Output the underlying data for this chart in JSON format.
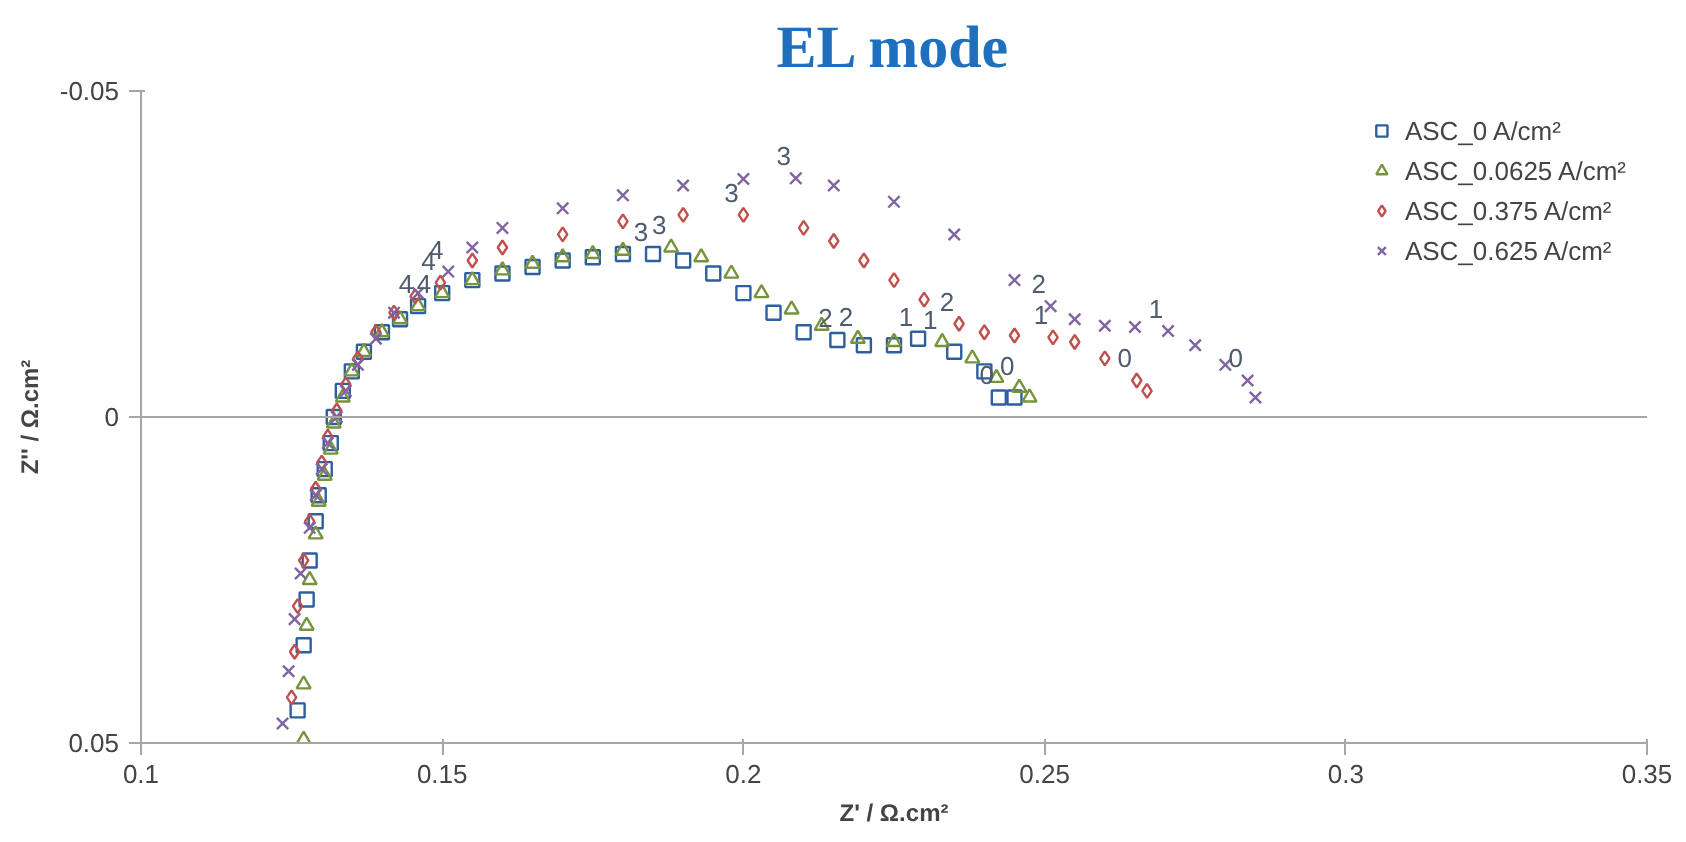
{
  "chart_data": {
    "type": "scatter",
    "title": "EL mode",
    "xlabel": "Z' / Ω.cm²",
    "ylabel": "Z'' / Ω.cm²",
    "xlim": [
      0.1,
      0.35
    ],
    "xticks": [
      0.1,
      0.15,
      0.2,
      0.25,
      0.3,
      0.35
    ],
    "ylim": [
      0.05,
      -0.05
    ],
    "yticks": [
      -0.05,
      0,
      0.05
    ],
    "grid": false,
    "legend": "top right",
    "ref_lines": [
      {
        "axis": "y",
        "value": 0,
        "color": "#a6a6a6"
      }
    ],
    "series": [
      {
        "name": "ASC_0 A/cm²",
        "color": "#2e5f9e",
        "marker": "square",
        "x": [
          0.126,
          0.127,
          0.1275,
          0.128,
          0.129,
          0.1295,
          0.1305,
          0.1315,
          0.132,
          0.1335,
          0.135,
          0.137,
          0.14,
          0.143,
          0.146,
          0.15,
          0.155,
          0.16,
          0.165,
          0.17,
          0.175,
          0.18,
          0.185,
          0.19,
          0.195,
          0.2,
          0.205,
          0.21,
          0.2156,
          0.22,
          0.225,
          0.229,
          0.235,
          0.24,
          0.2424,
          0.245
        ],
        "values": [
          0.045,
          0.035,
          0.028,
          0.022,
          0.016,
          0.012,
          0.008,
          0.004,
          0.0,
          -0.004,
          -0.007,
          -0.01,
          -0.013,
          -0.015,
          -0.017,
          -0.019,
          -0.021,
          -0.022,
          -0.023,
          -0.024,
          -0.0245,
          -0.025,
          -0.025,
          -0.024,
          -0.022,
          -0.019,
          -0.016,
          -0.013,
          -0.0118,
          -0.011,
          -0.011,
          -0.012,
          -0.01,
          -0.007,
          -0.003,
          -0.003
        ]
      },
      {
        "name": "ASC_0.0625 A/cm²",
        "color": "#77933c",
        "marker": "triangle",
        "x": [
          0.127,
          0.127,
          0.1275,
          0.128,
          0.129,
          0.1295,
          0.1305,
          0.1315,
          0.132,
          0.1335,
          0.135,
          0.137,
          0.14,
          0.143,
          0.146,
          0.15,
          0.155,
          0.16,
          0.165,
          0.17,
          0.175,
          0.18,
          0.188,
          0.193,
          0.198,
          0.203,
          0.208,
          0.213,
          0.219,
          0.225,
          0.233,
          0.238,
          0.242,
          0.2458,
          0.2475
        ],
        "values": [
          0.0495,
          0.041,
          0.032,
          0.025,
          0.018,
          0.013,
          0.009,
          0.005,
          0.001,
          -0.003,
          -0.007,
          -0.01,
          -0.013,
          -0.015,
          -0.017,
          -0.019,
          -0.021,
          -0.0225,
          -0.0235,
          -0.0245,
          -0.025,
          -0.0255,
          -0.026,
          -0.0245,
          -0.022,
          -0.019,
          -0.0165,
          -0.014,
          -0.012,
          -0.0115,
          -0.0115,
          -0.009,
          -0.006,
          -0.0045,
          -0.003
        ]
      },
      {
        "name": "ASC_0.375 A/cm²",
        "color": "#c0504d",
        "marker": "diamond",
        "x": [
          0.125,
          0.1255,
          0.126,
          0.127,
          0.128,
          0.129,
          0.13,
          0.131,
          0.1325,
          0.134,
          0.136,
          0.139,
          0.142,
          0.1455,
          0.1497,
          0.155,
          0.16,
          0.17,
          0.18,
          0.19,
          0.2,
          0.21,
          0.215,
          0.22,
          0.225,
          0.23,
          0.2358,
          0.24,
          0.245,
          0.2514,
          0.255,
          0.26,
          0.2653,
          0.267
        ],
        "values": [
          0.043,
          0.036,
          0.029,
          0.022,
          0.016,
          0.011,
          0.007,
          0.003,
          -0.001,
          -0.005,
          -0.009,
          -0.013,
          -0.016,
          -0.0185,
          -0.0206,
          -0.024,
          -0.026,
          -0.028,
          -0.03,
          -0.031,
          -0.031,
          -0.029,
          -0.027,
          -0.024,
          -0.021,
          -0.018,
          -0.0143,
          -0.013,
          -0.0125,
          -0.0122,
          -0.0115,
          -0.009,
          -0.0056,
          -0.004
        ]
      },
      {
        "name": "ASC_0.625 A/cm²",
        "color": "#8064a2",
        "marker": "x",
        "x": [
          0.1235,
          0.1245,
          0.1255,
          0.1265,
          0.128,
          0.129,
          0.13,
          0.131,
          0.1325,
          0.134,
          0.136,
          0.139,
          0.142,
          0.146,
          0.151,
          0.155,
          0.16,
          0.17,
          0.18,
          0.19,
          0.2,
          0.2087,
          0.215,
          0.225,
          0.235,
          0.245,
          0.251,
          0.255,
          0.26,
          0.265,
          0.2705,
          0.275,
          0.28,
          0.2837,
          0.285
        ],
        "values": [
          0.047,
          0.039,
          0.031,
          0.024,
          0.017,
          0.012,
          0.008,
          0.004,
          0.0,
          -0.004,
          -0.008,
          -0.012,
          -0.016,
          -0.019,
          -0.0223,
          -0.026,
          -0.029,
          -0.032,
          -0.034,
          -0.0355,
          -0.0365,
          -0.0366,
          -0.0355,
          -0.033,
          -0.028,
          -0.021,
          -0.017,
          -0.015,
          -0.014,
          -0.0138,
          -0.0132,
          -0.011,
          -0.008,
          -0.0056,
          -0.003
        ]
      }
    ],
    "annotations": [
      {
        "text": "4",
        "x": 0.146,
        "y": -0.017
      },
      {
        "text": "3",
        "x": 0.185,
        "y": -0.025
      },
      {
        "text": "2",
        "x": 0.2156,
        "y": -0.0118
      },
      {
        "text": "1",
        "x": 0.229,
        "y": -0.012
      },
      {
        "text": "0",
        "x": 0.2424,
        "y": -0.003
      },
      {
        "text": "4",
        "x": 0.146,
        "y": -0.017
      },
      {
        "text": "3",
        "x": 0.188,
        "y": -0.026
      },
      {
        "text": "2",
        "x": 0.219,
        "y": -0.012
      },
      {
        "text": "1",
        "x": 0.233,
        "y": -0.0115
      },
      {
        "text": "0",
        "x": 0.2458,
        "y": -0.0045
      },
      {
        "text": "4",
        "x": 0.1497,
        "y": -0.0206
      },
      {
        "text": "3",
        "x": 0.2,
        "y": -0.031
      },
      {
        "text": "2",
        "x": 0.2358,
        "y": -0.0143
      },
      {
        "text": "1",
        "x": 0.2514,
        "y": -0.0122
      },
      {
        "text": "0",
        "x": 0.2653,
        "y": -0.0056
      },
      {
        "text": "4",
        "x": 0.151,
        "y": -0.0223
      },
      {
        "text": "3",
        "x": 0.2087,
        "y": -0.0366
      },
      {
        "text": "2",
        "x": 0.251,
        "y": -0.017
      },
      {
        "text": "1",
        "x": 0.2705,
        "y": -0.0132
      },
      {
        "text": "0",
        "x": 0.2837,
        "y": -0.0056
      }
    ]
  }
}
